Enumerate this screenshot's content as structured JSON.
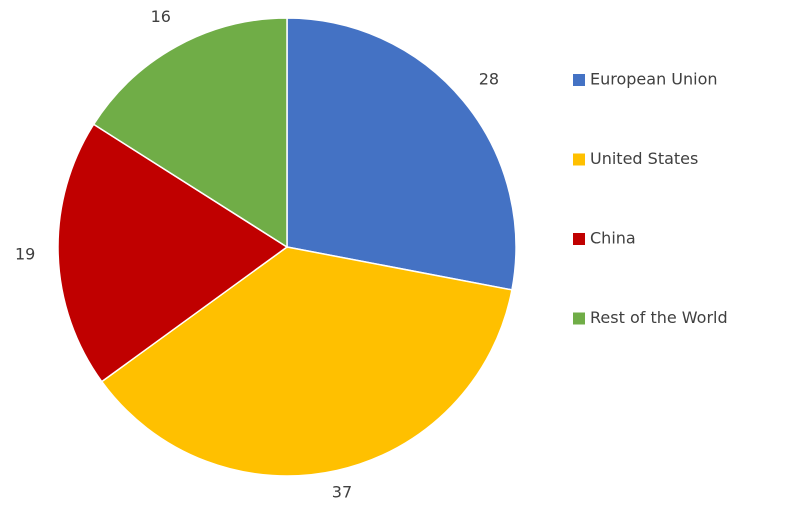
{
  "chart_data": {
    "type": "pie",
    "categories": [
      "European Union",
      "United States",
      "China",
      "Rest of the World"
    ],
    "values": [
      28,
      37,
      19,
      16
    ],
    "colors": [
      "#4472c4",
      "#ffc000",
      "#c00000",
      "#70ad47"
    ],
    "legend": "right"
  }
}
